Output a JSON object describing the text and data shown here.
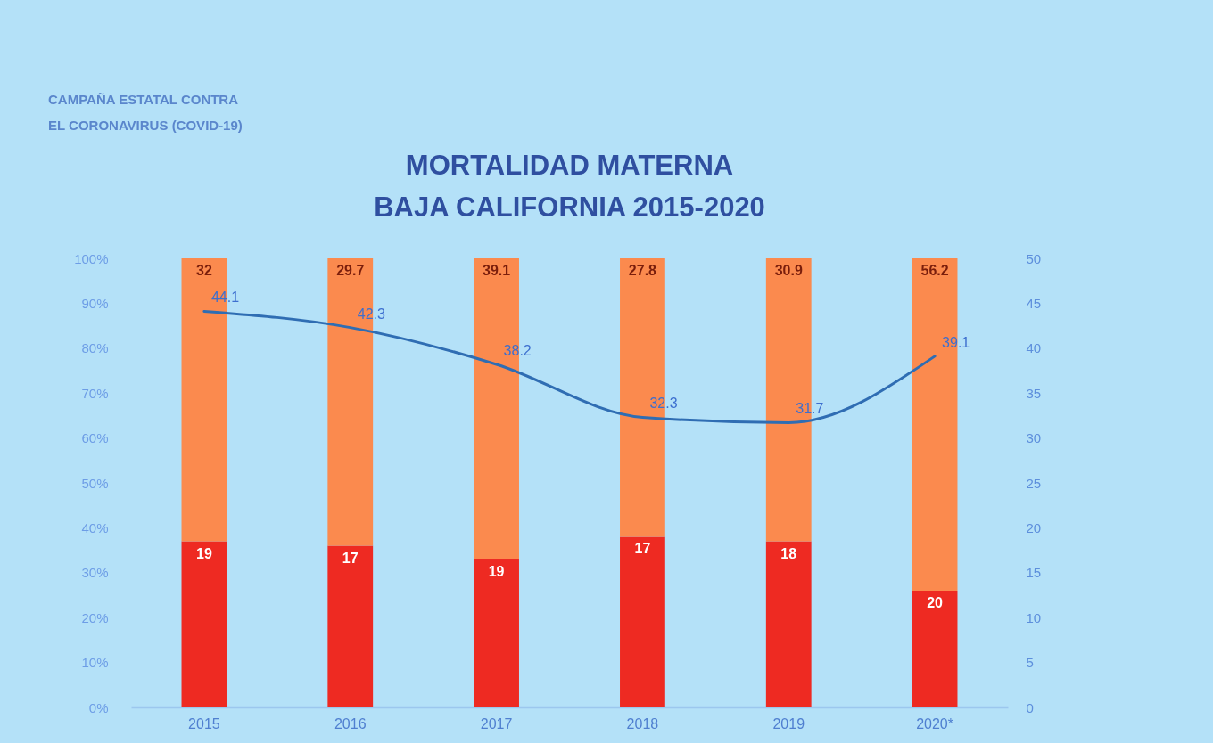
{
  "chart_data": {
    "type": "bar",
    "title": "MORTALIDAD MATERNA",
    "subtitle": "BAJA CALIFORNIA 2015-2020",
    "annotations": [
      "CAMPAÑA ESTATAL CONTRA",
      "EL CORONAVIRUS (COVID-19)",
      {
        "text": "19",
        "x": "2015",
        "y": 37
      },
      {
        "text": "17",
        "x": "2016",
        "y": 36
      },
      {
        "text": "19",
        "x": "2017",
        "y": 33
      },
      {
        "text": "17",
        "x": "2018",
        "y": 38
      },
      {
        "text": "18",
        "x": "2019",
        "y": 37
      },
      {
        "text": "20",
        "x": "2020*",
        "y": 26
      },
      {
        "text": "32",
        "x": "2015",
        "y": 100
      },
      {
        "text": "29.7",
        "x": "2016",
        "y": 100
      },
      {
        "text": "39.1",
        "x": "2017",
        "y": 100
      },
      {
        "text": "27.8",
        "x": "2018",
        "y": 100
      },
      {
        "text": "30.9",
        "x": "2019",
        "y": 100
      },
      {
        "text": "56.2",
        "x": "2020*",
        "y": 100
      }
    ],
    "categories": [
      "2015",
      "2016",
      "2017",
      "2018",
      "2019",
      "2020*"
    ],
    "stacked": true,
    "line_style": "solid",
    "series": [
      {
        "color": "#ee2a22",
        "values": [
          37,
          36,
          33,
          38,
          37,
          26
        ]
      },
      {
        "color": "#fb8a4e",
        "values": [
          63,
          64,
          67,
          62,
          63,
          74
        ]
      },
      {
        "type": "line",
        "axis": "y2",
        "color": "#2f6db3",
        "values": [
          44.1,
          42.3,
          38.2,
          32.3,
          31.7,
          39.1
        ],
        "value_labels": [
          "44.1",
          "42.3",
          "38.2",
          "32.3",
          "31.7",
          "39.1"
        ]
      }
    ],
    "ylim": [
      0,
      100
    ],
    "yticks": [
      {
        "value": 0,
        "label": "0%"
      },
      {
        "value": 10,
        "label": "10%"
      },
      {
        "value": 20,
        "label": "20%"
      },
      {
        "value": 30,
        "label": "30%"
      },
      {
        "value": 40,
        "label": "40%"
      },
      {
        "value": 50,
        "label": "50%"
      },
      {
        "value": 60,
        "label": "60%"
      },
      {
        "value": 70,
        "label": "70%"
      },
      {
        "value": 80,
        "label": "80%"
      },
      {
        "value": 90,
        "label": "90%"
      },
      {
        "value": 100,
        "label": "100%"
      }
    ],
    "y2lim": [
      0,
      50
    ],
    "y2ticks": [
      0,
      5,
      10,
      15,
      20,
      25,
      30,
      35,
      40,
      45,
      50
    ]
  }
}
